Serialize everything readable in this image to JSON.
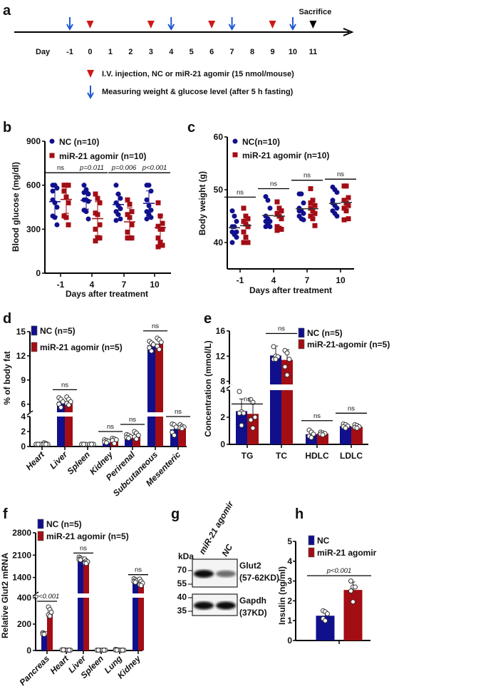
{
  "colors": {
    "nc": "#10108c",
    "agomir": "#a30d14",
    "arrow": "#1f57d6",
    "triangle": "#d01818"
  },
  "panel_labels": [
    "a",
    "b",
    "c",
    "d",
    "e",
    "f",
    "g",
    "h"
  ],
  "timeline": {
    "day_label": "Day",
    "days": [
      "-1",
      "0",
      "1",
      "2",
      "3",
      "4",
      "5",
      "6",
      "7",
      "8",
      "9",
      "10",
      "11"
    ],
    "injection_days": [
      "0",
      "3",
      "6",
      "9"
    ],
    "measure_days": [
      "-1",
      "4",
      "7",
      "10"
    ],
    "sacrifice_day": "11",
    "sacrifice_label": "Sacrifice",
    "legend_injection": "I.V. injection,   NC or miR-21 agomir (15 nmol/mouse)",
    "legend_measure": "Measuring weight  & glucose level (after 5 h fasting)"
  },
  "chart_data": [
    {
      "panel": "b",
      "type": "scatter",
      "ylabel": "Blood glucose (mg/dl)",
      "xlabel": "Days after treatment",
      "ylim": [
        0,
        900
      ],
      "yticks": [
        "0",
        "300",
        "600",
        "900"
      ],
      "ytick_values": [
        0,
        300,
        600,
        900
      ],
      "axis_segments": [
        [
          0,
          900
        ]
      ],
      "categories": [
        "-1",
        "4",
        "7",
        "10"
      ],
      "series": [
        {
          "name": "NC (n=10)",
          "marker": "circle",
          "mean": [
            488,
            497,
            468,
            476
          ],
          "sd": [
            100,
            60,
            70,
            85
          ],
          "points": [
            [
              600,
              600,
              580,
              560,
              480,
              450,
              390,
              380,
              330,
              500
            ],
            [
              600,
              570,
              540,
              500,
              500,
              490,
              430,
              420,
              370,
              550
            ],
            [
              600,
              540,
              510,
              480,
              460,
              440,
              420,
              400,
              370,
              360
            ],
            [
              600,
              600,
              560,
              500,
              460,
              430,
              420,
              400,
              380,
              370
            ]
          ]
        },
        {
          "name": "miR-21 agomir (n=10)",
          "marker": "square",
          "mean": [
            503,
            372,
            350,
            310
          ],
          "sd": [
            95,
            115,
            95,
            85
          ],
          "points": [
            [
              600,
              600,
              600,
              560,
              520,
              480,
              390,
              380,
              330,
              560
            ],
            [
              540,
              510,
              480,
              410,
              400,
              330,
              300,
              240,
              240,
              220
            ],
            [
              500,
              470,
              420,
              400,
              380,
              330,
              280,
              240,
              240,
              240
            ],
            [
              480,
              390,
              340,
              320,
              300,
              300,
              240,
              210,
              190,
              180
            ]
          ]
        }
      ],
      "annotations": [
        {
          "text": "ns",
          "category": 0,
          "level": 685
        },
        {
          "text": "p=0.011",
          "category": 1,
          "level": 685
        },
        {
          "text": "p=0.006",
          "category": 2,
          "level": 685
        },
        {
          "text": "p<0.001",
          "category": 3,
          "level": 685
        }
      ]
    },
    {
      "panel": "c",
      "type": "scatter",
      "ylabel": "Body weight (g)",
      "xlabel": "Days after treatment",
      "ylim": [
        35,
        60
      ],
      "yticks": [
        "40",
        "50",
        "60"
      ],
      "ytick_values": [
        40,
        50,
        60
      ],
      "axis_segments": [
        [
          35,
          60
        ]
      ],
      "categories": [
        "-1",
        "4",
        "7",
        "10"
      ],
      "series": [
        {
          "name": "NC(n=10)",
          "marker": "circle",
          "mean": [
            42.8,
            45.1,
            46.4,
            47.4
          ],
          "sd": [
            0,
            0,
            0,
            0
          ],
          "points": [
            [
              46,
              45,
              44,
              43,
              43,
              42,
              42,
              41.5,
              41,
              40
            ],
            [
              48.7,
              48,
              46.5,
              45,
              44.5,
              44,
              44,
              43.5,
              43,
              43
            ],
            [
              49.2,
              49.2,
              47.5,
              46.5,
              46,
              45.5,
              45,
              44.5,
              44.3,
              46
            ],
            [
              50.5,
              50,
              49.5,
              48,
              47,
              46.5,
              46,
              45.5,
              45,
              47.5
            ]
          ]
        },
        {
          "name": "miR-21 agomir (n=10)",
          "marker": "square",
          "mean": [
            43.2,
            45.0,
            46.4,
            47.6
          ],
          "sd": [
            0,
            0,
            0,
            0
          ],
          "points": [
            [
              46.5,
              45,
              44.5,
              44,
              43.5,
              43,
              42,
              41,
              40,
              40
            ],
            [
              47.7,
              46.5,
              46,
              45.5,
              45,
              44.5,
              43,
              42.7,
              42.5,
              42.3
            ],
            [
              50.2,
              48,
              47,
              46.5,
              46,
              45.5,
              45,
              44.5,
              43.2,
              47.5
            ],
            [
              50.7,
              50.7,
              48.5,
              48,
              47.5,
              47,
              46.5,
              46,
              44.5,
              44.3
            ]
          ]
        }
      ],
      "annotations": [
        {
          "text": "ns",
          "category": 0,
          "level": 48.6
        },
        {
          "text": "ns",
          "category": 1,
          "level": 50.2
        },
        {
          "text": "ns",
          "category": 2,
          "level": 51.8
        },
        {
          "text": "ns",
          "category": 3,
          "level": 52
        }
      ]
    },
    {
      "panel": "d",
      "type": "bar",
      "ylabel": "% of body fat",
      "xlabel": "",
      "ylim": [
        0,
        15
      ],
      "yticks": [
        "0",
        "2",
        "4",
        "6",
        "9",
        "12",
        "15"
      ],
      "ytick_values": [
        0,
        2,
        4,
        6,
        9,
        12,
        15
      ],
      "axis_segments": [
        [
          0,
          4
        ],
        [
          5,
          15
        ]
      ],
      "categories": [
        "Heart",
        "Liver",
        "Spleen",
        "Kidney",
        "Perirenal",
        "Subcutaneous",
        "Mesenteric"
      ],
      "series": [
        {
          "name": "NC (n=5)",
          "mean": [
            0.3,
            6.3,
            0.3,
            0.7,
            1.3,
            13.3,
            2.3
          ],
          "sd": [
            0.05,
            0.45,
            0.05,
            0.15,
            0.2,
            0.5,
            0.6
          ],
          "points": [
            [
              0.3,
              0.3,
              0.3,
              0.3,
              0.3
            ],
            [
              6.8,
              6.6,
              6.3,
              6.0,
              5.6
            ],
            [
              0.3,
              0.3,
              0.3,
              0.3,
              0.3
            ],
            [
              0.9,
              0.8,
              0.7,
              0.6,
              0.5
            ],
            [
              1.6,
              1.5,
              1.3,
              1.2,
              1.1
            ],
            [
              13.8,
              13.6,
              13.4,
              13.0,
              12.6
            ],
            [
              3.0,
              2.9,
              2.6,
              1.9,
              1.5
            ]
          ]
        },
        {
          "name": "miR-21 agomir (n=5)",
          "mean": [
            0.35,
            6.3,
            0.3,
            0.9,
            1.5,
            13.5,
            2.6
          ],
          "sd": [
            0.1,
            0.4,
            0.05,
            0.25,
            0.35,
            0.6,
            0.2
          ],
          "points": [
            [
              0.5,
              0.4,
              0.3,
              0.3,
              0.3
            ],
            [
              6.9,
              6.6,
              6.3,
              6.1,
              5.9
            ],
            [
              0.3,
              0.3,
              0.3,
              0.3,
              0.3
            ],
            [
              1.1,
              1.0,
              0.9,
              0.8,
              0.4
            ],
            [
              2.0,
              1.8,
              1.5,
              1.3,
              1.0
            ],
            [
              14.2,
              14.0,
              13.7,
              13.2,
              12.8
            ],
            [
              2.9,
              2.7,
              2.6,
              2.5,
              2.4
            ]
          ]
        }
      ],
      "annotations": [
        {
          "text": "ns",
          "category": 1,
          "level": 7.8
        },
        {
          "text": "ns",
          "category": 3,
          "level": 2.0
        },
        {
          "text": "ns",
          "category": 4,
          "level": 2.95
        },
        {
          "text": "ns",
          "category": 5,
          "level": 15.1
        },
        {
          "text": "ns",
          "category": 6,
          "level": 4.0
        }
      ]
    },
    {
      "panel": "e",
      "type": "bar",
      "ylabel": "Concentration (mmol/L)",
      "xlabel": "",
      "ylim": [
        0,
        16
      ],
      "yticks": [
        "0",
        "2",
        "4",
        "8",
        "12",
        "16"
      ],
      "ytick_values": [
        0,
        2,
        4,
        8,
        12,
        16
      ],
      "axis_segments": [
        [
          0,
          4
        ],
        [
          7.5,
          16
        ]
      ],
      "categories": [
        "TG",
        "TC",
        "HDLC",
        "LDLC"
      ],
      "series": [
        {
          "name": "NC (n=5)",
          "mean": [
            2.45,
            12.1,
            0.75,
            1.35
          ],
          "sd": [
            0.9,
            1.5,
            0.25,
            0.15
          ],
          "points": [
            [
              3.9,
              2.4,
              2.3,
              2.3,
              1.4
            ],
            [
              13.5,
              12,
              11.9,
              11.5,
              11.5
            ],
            [
              1.05,
              0.9,
              0.75,
              0.6,
              0.5
            ],
            [
              1.5,
              1.45,
              1.35,
              1.3,
              1.2
            ]
          ]
        },
        {
          "name": "miR-21-agomir (n=5)",
          "mean": [
            2.25,
            11.4,
            0.8,
            1.3
          ],
          "sd": [
            0.9,
            1.6,
            0.1,
            0.1
          ],
          "points": [
            [
              3.3,
              3.1,
              2.0,
              1.8,
              1.2
            ],
            [
              12.9,
              12.5,
              11.5,
              10.3,
              9.0
            ],
            [
              0.9,
              0.85,
              0.8,
              0.75,
              0.7
            ],
            [
              1.45,
              1.4,
              1.3,
              1.25,
              1.2
            ]
          ]
        }
      ],
      "annotations": [
        {
          "text": "ns",
          "category": 0,
          "level": 4.4
        },
        {
          "text": "ns",
          "category": 1,
          "level": 15.6
        },
        {
          "text": "ns",
          "category": 2,
          "level": 1.75
        },
        {
          "text": "ns",
          "category": 3,
          "level": 2.3
        }
      ]
    },
    {
      "panel": "f",
      "type": "bar",
      "ylabel": "Relative Glut2 mRNA",
      "xlabel": "",
      "ylim": [
        0,
        2800
      ],
      "yticks": [
        "0",
        "200",
        "400",
        "1400",
        "2100",
        "2800"
      ],
      "ytick_values": [
        0,
        200,
        400,
        1400,
        2100,
        2800
      ],
      "axis_segments": [
        [
          0,
          400
        ],
        [
          900,
          2800
        ]
      ],
      "categories": [
        "Pancreas",
        "Heart",
        "Liver",
        "Spleen",
        "Lung",
        "Kidney"
      ],
      "series": [
        {
          "name": "NC (n=5)",
          "mean": [
            130,
            5,
            1990,
            3,
            5,
            1300
          ],
          "sd": [
            8,
            1,
            40,
            1,
            2,
            45
          ],
          "points": [
            [
              135,
              130,
              128,
              125,
              122
            ],
            [
              5,
              5,
              5,
              5,
              5
            ],
            [
              2040,
              2010,
              1980,
              1960,
              1950
            ],
            [
              3,
              3,
              3,
              3,
              3
            ],
            [
              8,
              6,
              5,
              4,
              3
            ],
            [
              1360,
              1330,
              1300,
              1270,
              1250
            ]
          ]
        },
        {
          "name": "miR-21 agomir (n=5)",
          "mean": [
            290,
            3,
            1900,
            3,
            3,
            1230
          ],
          "sd": [
            30,
            1,
            60,
            1,
            1,
            80
          ],
          "points": [
            [
              330,
              310,
              290,
              270,
              260
            ],
            [
              3,
              3,
              3,
              3,
              3
            ],
            [
              1980,
              1920,
              1890,
              1850,
              1840
            ],
            [
              3,
              3,
              3,
              3,
              3
            ],
            [
              3,
              3,
              3,
              3,
              3
            ],
            [
              1350,
              1280,
              1220,
              1170,
              1150
            ]
          ]
        }
      ],
      "annotations": [
        {
          "text": "p<0.001",
          "category": 0,
          "level": 373
        },
        {
          "text": "ns",
          "category": 2,
          "level": 2165
        },
        {
          "text": "ns",
          "category": 5,
          "level": 1488
        }
      ]
    },
    {
      "panel": "h",
      "type": "bar",
      "ylabel": "Insulin (ng/ml)",
      "xlabel": "",
      "ylim": [
        0,
        5
      ],
      "yticks": [
        "0",
        "1",
        "2",
        "3",
        "4",
        "5"
      ],
      "ytick_values": [
        0,
        1,
        2,
        3,
        4,
        5
      ],
      "axis_segments": [
        [
          0,
          5
        ]
      ],
      "categories": [
        ""
      ],
      "series": [
        {
          "name": "NC",
          "mean": [
            1.25
          ],
          "sd": [
            0.2
          ],
          "points": [
            [
              1.5,
              1.45,
              1.35,
              1.1,
              1.0
            ]
          ]
        },
        {
          "name": "miR-21 agomir",
          "mean": [
            2.55
          ],
          "sd": [
            0.4
          ],
          "points": [
            [
              3.0,
              2.7,
              2.7,
              2.5,
              1.95
            ]
          ]
        }
      ],
      "annotations": [
        {
          "text": "p<0.001",
          "category": 0,
          "level": 3.27
        }
      ]
    }
  ],
  "blot": {
    "unit_label": "kDa",
    "lanes": [
      "miR-21 agomir",
      "NC"
    ],
    "panels": [
      {
        "protein": "Glut2",
        "size": "(57-62KD)",
        "markers": [
          "70",
          "55"
        ],
        "band_intensity": [
          1.0,
          0.6
        ]
      },
      {
        "protein": "Gapdh",
        "size": "(37KD)",
        "markers": [
          "40",
          "35"
        ],
        "band_intensity": [
          1.0,
          1.0
        ]
      }
    ]
  }
}
